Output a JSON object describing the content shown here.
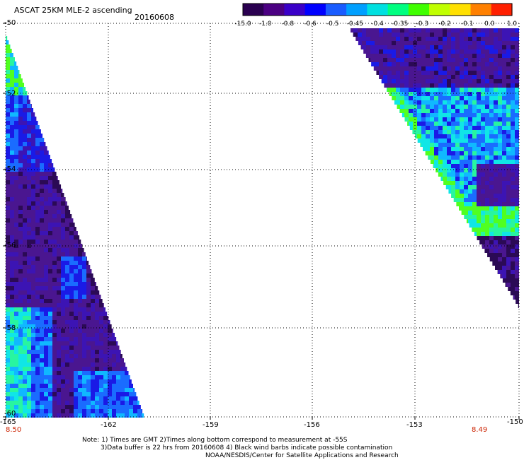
{
  "header": {
    "title": "ASCAT 25KM MLE-2 ascending",
    "date": "20160608"
  },
  "colorbar": {
    "labels": [
      "-15.0",
      "-1.0",
      "-0.8",
      "-0.6",
      "-0.5",
      "-0.45",
      "-0.4",
      "-0.35",
      "-0.3",
      "-0.2",
      "-0.1",
      "0.0",
      "1.0"
    ],
    "colors": [
      "#2a0050",
      "#4b0082",
      "#3a00c8",
      "#0000ff",
      "#1a5cff",
      "#00a0ff",
      "#00e0e0",
      "#00ff80",
      "#40ff00",
      "#c0ff00",
      "#ffe000",
      "#ff8000",
      "#ff2000"
    ]
  },
  "map": {
    "lat_labels": [
      "-50",
      "-52",
      "-54",
      "-56",
      "-58",
      "-60"
    ],
    "lon_labels": [
      "-165",
      "-162",
      "-159",
      "-156",
      "-153",
      "-150"
    ],
    "time_labels": [
      "8.50",
      "8.49"
    ]
  },
  "swath_palette": {
    "deep": "#2b0a55",
    "purple": "#4a1690",
    "violet": "#3c14b4",
    "blue": "#1a1ae6",
    "azure": "#1a6cff",
    "sky": "#10b8ff",
    "cyan": "#10e6e6",
    "mint": "#28f5a0",
    "green": "#50ff20"
  },
  "footer": {
    "note_line1": "Note: 1) Times are GMT 2)Times along bottom correspond to measurement at -55S",
    "note_line2": "3)Data buffer is 22 hrs from 20160608 4) Black wind barbs indicate possible contamination",
    "note_line3": "NOAA/NESDIS/Center for Satellite Applications and Research"
  }
}
